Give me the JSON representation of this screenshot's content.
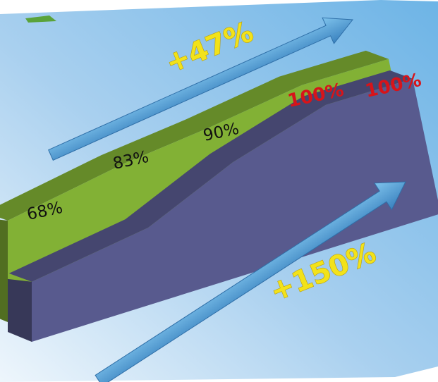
{
  "chart_data": {
    "type": "area",
    "title": "",
    "xlabel": "",
    "ylabel": "",
    "x": [
      1,
      2,
      3,
      4,
      5
    ],
    "series": [
      {
        "values": [
          68,
          83,
          90,
          100,
          100
        ],
        "labels": [
          "68%",
          "83%",
          "90%",
          "100%",
          "100%"
        ],
        "color": "#82b135"
      },
      {
        "values": [
          40,
          53,
          80,
          100,
          100
        ],
        "color": "#585a8e"
      }
    ],
    "annotations": [
      {
        "text": "+47%",
        "color": "#f2e21a"
      },
      {
        "text": "+150%",
        "color": "#f2e21a"
      }
    ],
    "highlight_color": "#d7141a",
    "label_color": "#111111",
    "background_color": "#7fb8e3",
    "grid": false,
    "legend": "none"
  }
}
